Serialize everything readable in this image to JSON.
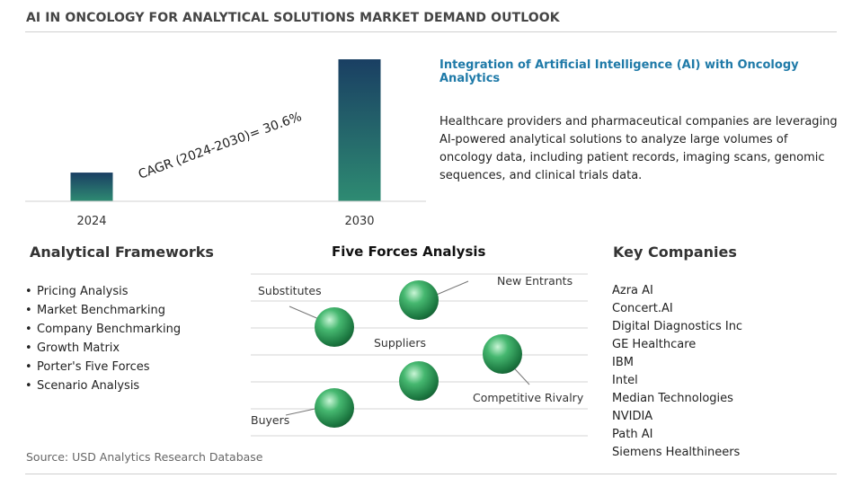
{
  "title": "AI IN ONCOLOGY FOR ANALYTICAL SOLUTIONS MARKET DEMAND OUTLOOK",
  "chart_data": {
    "type": "bar",
    "categories": [
      "2024",
      "2030"
    ],
    "values": [
      1,
      4.95
    ],
    "cagr_label": "CAGR (2024-2030)=  30.6%",
    "title": "",
    "xlabel": "",
    "ylabel": "",
    "bar_color_top": "#1a3f63",
    "bar_color_bottom": "#2e8b72"
  },
  "highlight": {
    "title": "Integration of Artificial Intelligence (AI) with Oncology Analytics",
    "text": "Healthcare providers and pharmaceutical companies are leveraging AI-powered analytical solutions to analyze large volumes of oncology data, including patient records, imaging scans, genomic sequences, and clinical trials data."
  },
  "frameworks": {
    "heading": "Analytical Frameworks",
    "bullet": "•",
    "items": [
      "Pricing Analysis",
      "Market Benchmarking",
      "Company Benchmarking",
      "Growth Matrix",
      "Porter's Five Forces",
      "Scenario Analysis"
    ]
  },
  "five_forces": {
    "heading": "Five Forces Analysis",
    "labels": {
      "substitutes": "Substitutes",
      "new_entrants": "New Entrants",
      "suppliers": "Suppliers",
      "competitive_rivalry": "Competitive Rivalry",
      "buyers": "Buyers"
    },
    "sphere_color": "#2e9b5a"
  },
  "companies": {
    "heading": "Key Companies",
    "items": [
      "Azra AI",
      "Concert.AI",
      "Digital Diagnostics Inc",
      "GE Healthcare",
      "IBM",
      "Intel",
      "Median Technologies",
      "NVIDIA",
      "Path AI",
      "Siemens Healthineers"
    ]
  },
  "source": "Source: USD Analytics Research Database"
}
